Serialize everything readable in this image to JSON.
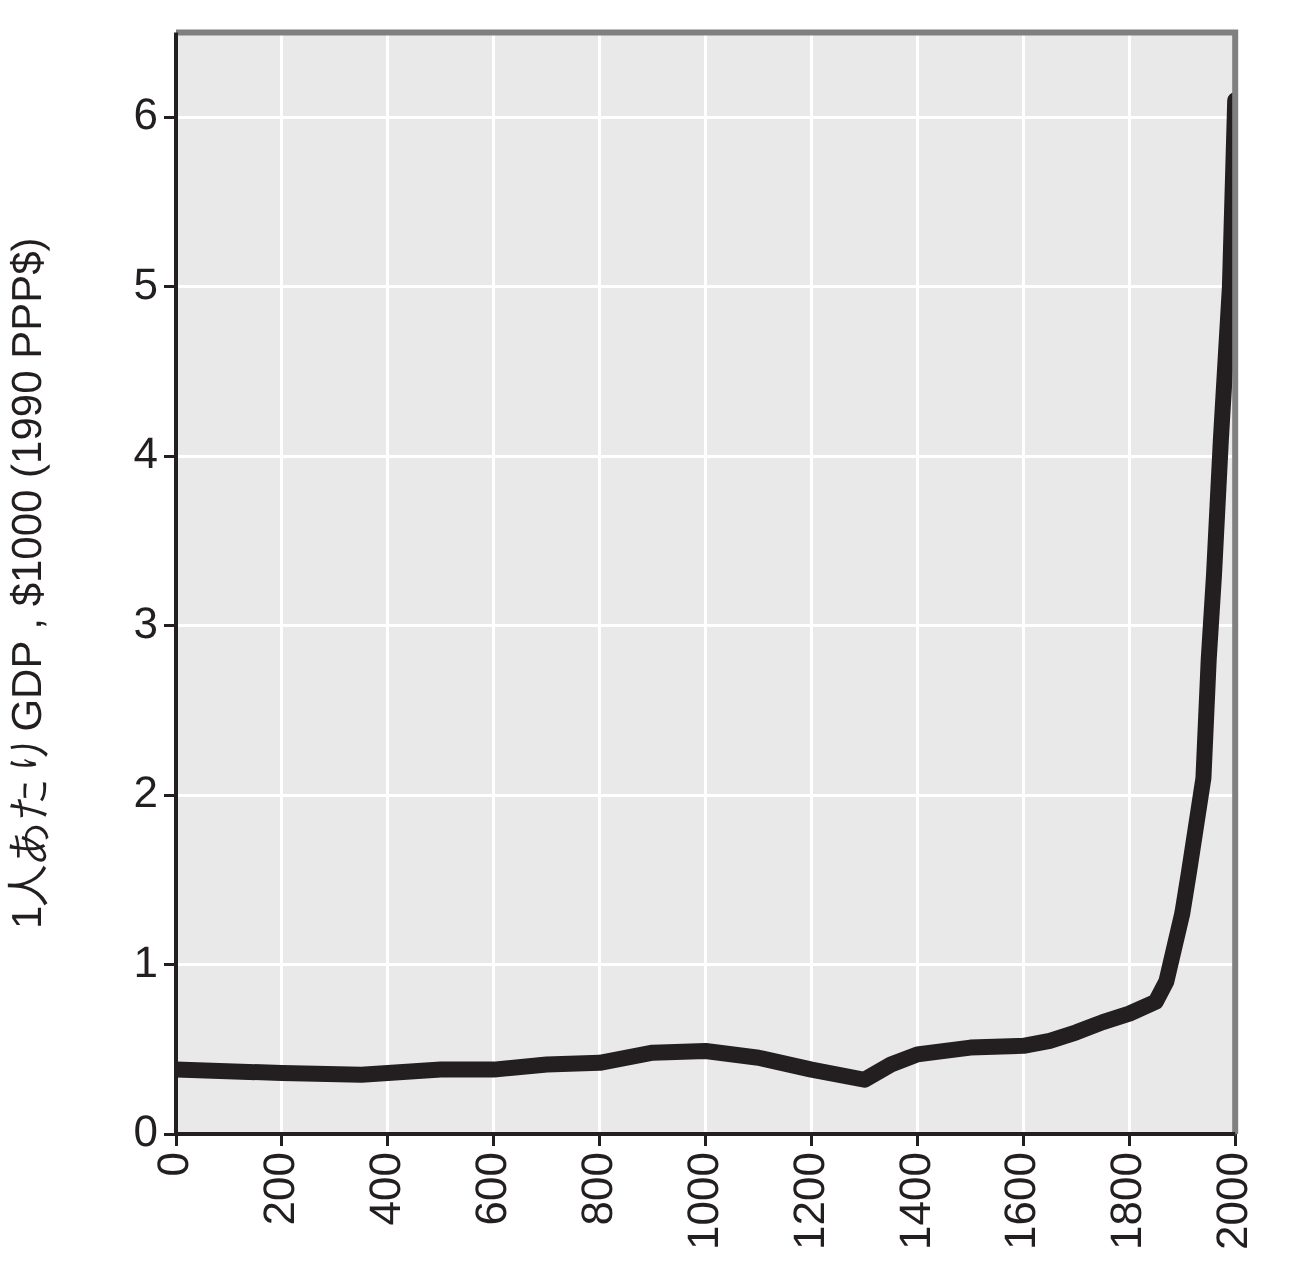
{
  "chart_data": {
    "type": "line",
    "ylabel": "1人あたりGDP , $1000 (1990 PPP$)",
    "x": [
      0,
      200,
      350,
      500,
      600,
      700,
      800,
      900,
      1000,
      1100,
      1200,
      1300,
      1350,
      1400,
      1500,
      1600,
      1650,
      1700,
      1750,
      1800,
      1850,
      1870,
      1900,
      1913,
      1940,
      1950,
      1960,
      1973,
      1990,
      2000
    ],
    "series": [
      {
        "color": "#231f20",
        "values": [
          0.38,
          0.36,
          0.35,
          0.38,
          0.38,
          0.41,
          0.42,
          0.48,
          0.49,
          0.45,
          0.38,
          0.32,
          0.41,
          0.47,
          0.51,
          0.52,
          0.55,
          0.6,
          0.66,
          0.71,
          0.78,
          0.9,
          1.3,
          1.55,
          2.1,
          2.8,
          3.3,
          4.1,
          5.0,
          6.1
        ]
      }
    ],
    "xlim": [
      0,
      2000
    ],
    "xticks": [
      0,
      200,
      400,
      600,
      800,
      1000,
      1200,
      1400,
      1600,
      1800,
      2000
    ],
    "ylim": [
      0,
      6.5
    ],
    "yticks": [
      0,
      1,
      2,
      3,
      4,
      5,
      6
    ],
    "grid": true,
    "legend": false,
    "marker": "none",
    "line_style": "solid"
  }
}
